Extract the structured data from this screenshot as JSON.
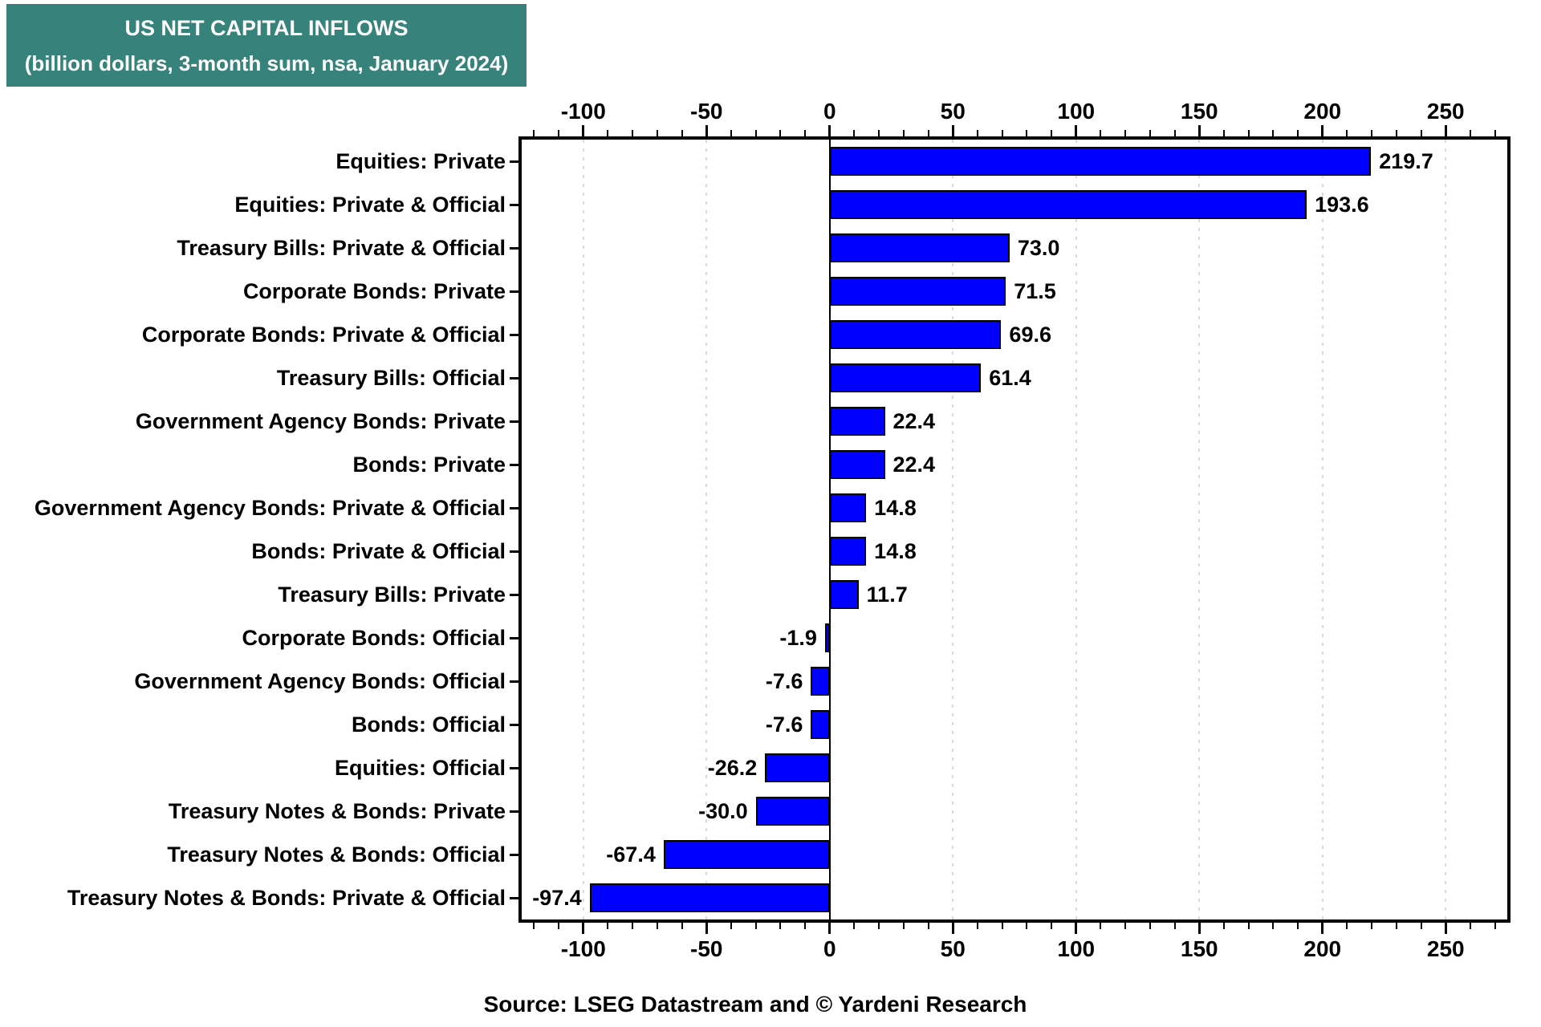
{
  "title": {
    "line1": "US NET CAPITAL INFLOWS",
    "line2": "(billion dollars, 3-month sum, nsa, January 2024)"
  },
  "source": "Source: LSEG Datastream and © Yardeni Research",
  "colors": {
    "title_bg": "#37827A",
    "title_text": "#ffffff",
    "bar_fill": "#0000FF",
    "bar_border": "#000000",
    "gridline": "#D9D9D9",
    "zero_line": "#000000",
    "frame": "#000000",
    "text": "#000000"
  },
  "chart_data": {
    "type": "bar",
    "orientation": "horizontal",
    "title": "US NET CAPITAL INFLOWS",
    "subtitle": "(billion dollars, 3-month sum, nsa, January 2024)",
    "categories": [
      "Equities: Private",
      "Equities: Private & Official",
      "Treasury Bills: Private & Official",
      "Corporate Bonds: Private",
      "Corporate Bonds: Private & Official",
      "Treasury Bills: Official",
      "Government Agency Bonds: Private",
      "Bonds: Private",
      "Government Agency Bonds: Private & Official",
      "Bonds: Private & Official",
      "Treasury Bills: Private",
      "Corporate Bonds: Official",
      "Government Agency Bonds: Official",
      "Bonds: Official",
      "Equities: Official",
      "Treasury Notes & Bonds: Private",
      "Treasury Notes & Bonds: Official",
      "Treasury Notes & Bonds: Private & Official"
    ],
    "values": [
      219.7,
      193.6,
      73.0,
      71.5,
      69.6,
      61.4,
      22.4,
      22.4,
      14.8,
      14.8,
      11.7,
      -1.9,
      -7.6,
      -7.6,
      -26.2,
      -30.0,
      -67.4,
      -97.4
    ],
    "value_labels": [
      "219.7",
      "193.6",
      "73.0",
      "71.5",
      "69.6",
      "61.4",
      "22.4",
      "22.4",
      "14.8",
      "14.8",
      "11.7",
      "-1.9",
      "-7.6",
      "-7.6",
      "-26.2",
      "-30.0",
      "-67.4",
      "-97.4"
    ],
    "xlabel": "",
    "ylabel": "",
    "xlim": [
      -125,
      275
    ],
    "x_major_ticks": [
      -100,
      -50,
      0,
      50,
      100,
      150,
      200,
      250
    ],
    "x_major_tick_labels": [
      "-100",
      "-50",
      "0",
      "50",
      "100",
      "150",
      "200",
      "250"
    ],
    "x_minor_tick_step": 10,
    "grid": "dotted vertical gridlines at major ticks, solid black line at zero",
    "legend_position": "none"
  }
}
